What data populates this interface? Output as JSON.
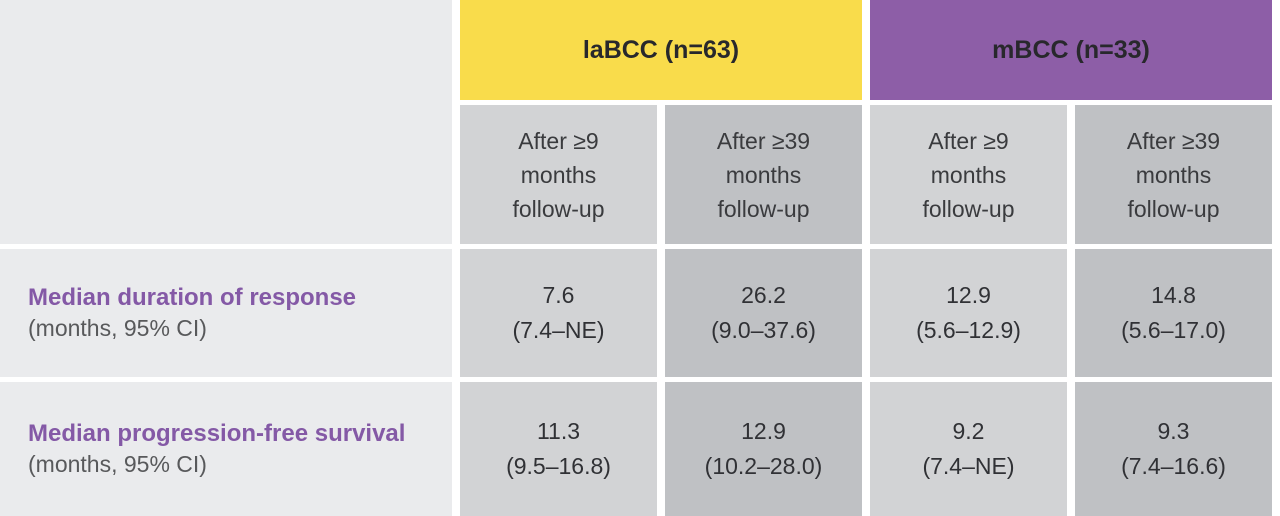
{
  "colors": {
    "labcc_header_bg": "#f9dc4b",
    "mbcc_header_bg": "#8d5ea7",
    "column_light_bg": "#d2d3d5",
    "column_dark_bg": "#bfc1c4",
    "row_label_bg": "#eaebed",
    "row_label_accent": "#8459a6",
    "value_text": "#303135",
    "sublabel_text": "#58595b"
  },
  "table": {
    "groups": [
      {
        "label": "laBCC (n=63)"
      },
      {
        "label": "mBCC (n=33)"
      }
    ],
    "subheaders": [
      "After ≥9\nmonths\nfollow-up",
      "After ≥39\nmonths\nfollow-up",
      "After ≥9\nmonths\nfollow-up",
      "After ≥39\nmonths\nfollow-up"
    ],
    "rows": [
      {
        "label": "Median duration of response",
        "sublabel": "(months, 95% CI)",
        "cells": [
          {
            "value": "7.6",
            "ci": "(7.4–NE)"
          },
          {
            "value": "26.2",
            "ci": "(9.0–37.6)"
          },
          {
            "value": "12.9",
            "ci": "(5.6–12.9)"
          },
          {
            "value": "14.8",
            "ci": "(5.6–17.0)"
          }
        ]
      },
      {
        "label": "Median progression-free survival",
        "sublabel": "(months, 95% CI)",
        "cells": [
          {
            "value": "11.3",
            "ci": "(9.5–16.8)"
          },
          {
            "value": "12.9",
            "ci": "(10.2–28.0)"
          },
          {
            "value": "9.2",
            "ci": "(7.4–NE)"
          },
          {
            "value": "9.3",
            "ci": "(7.4–16.6)"
          }
        ]
      }
    ]
  }
}
